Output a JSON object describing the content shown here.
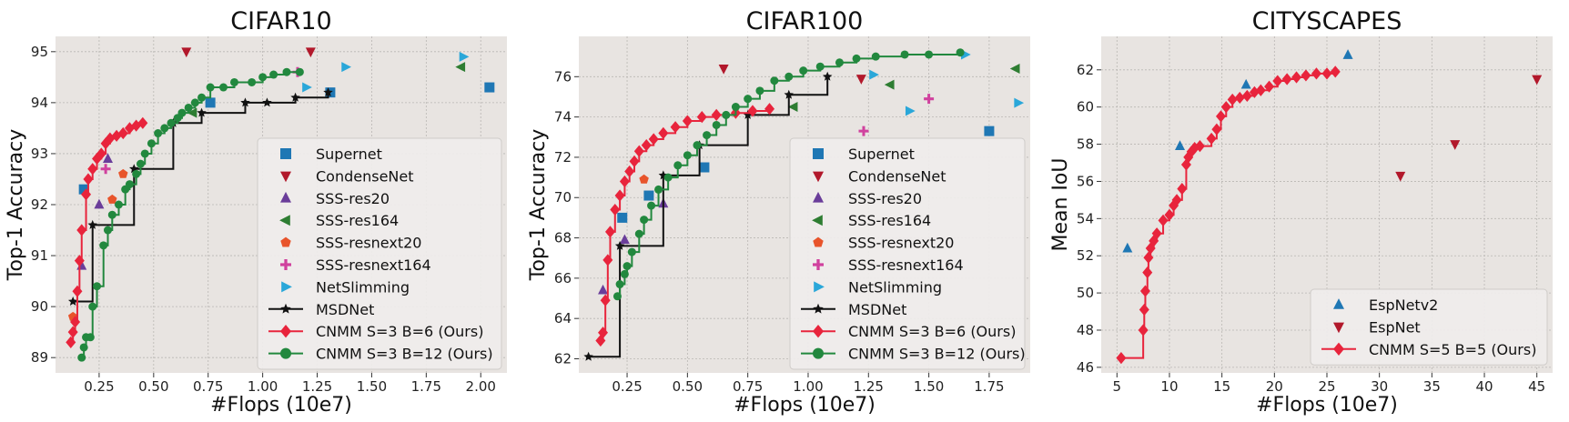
{
  "chart_data": [
    {
      "type": "scatter",
      "title": "CIFAR10",
      "xlabel": "#Flops (10e7)",
      "ylabel": "Top-1 Accuracy",
      "xlim": [
        0.05,
        2.12
      ],
      "ylim": [
        88.7,
        95.3
      ],
      "xticks": [
        0.25,
        0.5,
        0.75,
        1.0,
        1.25,
        1.5,
        1.75,
        2.0
      ],
      "xtick_labels": [
        "0.25",
        "0.50",
        "0.75",
        "1.00",
        "1.25",
        "1.50",
        "1.75",
        "2.00"
      ],
      "yticks": [
        89,
        90,
        91,
        92,
        93,
        94,
        95
      ],
      "legend_position": "lower-right",
      "series": [
        {
          "name": "Supernet",
          "marker": "square",
          "color": "#1f77b4",
          "kind": "scatter",
          "points": [
            [
              0.18,
              92.3
            ],
            [
              0.76,
              94.0
            ],
            [
              1.31,
              94.2
            ],
            [
              2.04,
              94.3
            ]
          ]
        },
        {
          "name": "CondenseNet",
          "marker": "tri-down",
          "color": "#b2182b",
          "kind": "scatter",
          "points": [
            [
              0.65,
              95.0
            ],
            [
              1.22,
              95.0
            ]
          ]
        },
        {
          "name": "SSS-res20",
          "marker": "tri-up",
          "color": "#6a3d9a",
          "kind": "scatter",
          "points": [
            [
              0.17,
              90.8
            ],
            [
              0.25,
              92.0
            ],
            [
              0.29,
              92.9
            ]
          ]
        },
        {
          "name": "SSS-res164",
          "marker": "tri-left",
          "color": "#2e7d32",
          "kind": "scatter",
          "points": [
            [
              0.68,
              93.8
            ],
            [
              1.91,
              94.7
            ]
          ]
        },
        {
          "name": "SSS-resnext20",
          "marker": "pentagon",
          "color": "#e8542b",
          "kind": "scatter",
          "points": [
            [
              0.13,
              89.8
            ],
            [
              0.31,
              92.1
            ],
            [
              0.36,
              92.6
            ]
          ]
        },
        {
          "name": "SSS-resnext164",
          "marker": "plus",
          "color": "#d0419e",
          "kind": "scatter",
          "points": [
            [
              0.28,
              92.7
            ],
            [
              1.16,
              94.6
            ]
          ]
        },
        {
          "name": "NetSlimming",
          "marker": "tri-right",
          "color": "#2aa7d9",
          "kind": "scatter",
          "points": [
            [
              1.38,
              94.7
            ],
            [
              1.92,
              94.9
            ],
            [
              1.2,
              94.3
            ]
          ]
        },
        {
          "name": "MSDNet",
          "marker": "star",
          "color": "#111111",
          "kind": "step",
          "points": [
            [
              0.13,
              90.1
            ],
            [
              0.22,
              91.6
            ],
            [
              0.41,
              92.7
            ],
            [
              0.59,
              93.6
            ],
            [
              0.72,
              93.8
            ],
            [
              0.92,
              94.0
            ],
            [
              1.02,
              94.0
            ],
            [
              1.15,
              94.1
            ],
            [
              1.3,
              94.2
            ]
          ]
        },
        {
          "name": "CNMM S=3 B=6 (Ours)",
          "marker": "diamond",
          "color": "#e8243c",
          "kind": "step",
          "points": [
            [
              0.12,
              89.3
            ],
            [
              0.13,
              89.5
            ],
            [
              0.14,
              89.7
            ],
            [
              0.15,
              90.3
            ],
            [
              0.16,
              90.9
            ],
            [
              0.17,
              91.5
            ],
            [
              0.19,
              92.2
            ],
            [
              0.2,
              92.5
            ],
            [
              0.22,
              92.7
            ],
            [
              0.24,
              92.9
            ],
            [
              0.26,
              93.0
            ],
            [
              0.28,
              93.2
            ],
            [
              0.3,
              93.3
            ],
            [
              0.33,
              93.35
            ],
            [
              0.36,
              93.4
            ],
            [
              0.39,
              93.5
            ],
            [
              0.42,
              93.55
            ],
            [
              0.45,
              93.6
            ]
          ]
        },
        {
          "name": "CNMM S=3 B=12 (Ours)",
          "marker": "circle",
          "color": "#22883e",
          "kind": "step",
          "points": [
            [
              0.17,
              89.0
            ],
            [
              0.18,
              89.2
            ],
            [
              0.19,
              89.4
            ],
            [
              0.21,
              89.4
            ],
            [
              0.22,
              90.0
            ],
            [
              0.24,
              90.4
            ],
            [
              0.27,
              91.2
            ],
            [
              0.29,
              91.5
            ],
            [
              0.31,
              91.8
            ],
            [
              0.34,
              92.0
            ],
            [
              0.37,
              92.3
            ],
            [
              0.39,
              92.4
            ],
            [
              0.42,
              92.6
            ],
            [
              0.44,
              92.8
            ],
            [
              0.46,
              93.0
            ],
            [
              0.49,
              93.2
            ],
            [
              0.52,
              93.4
            ],
            [
              0.55,
              93.5
            ],
            [
              0.58,
              93.6
            ],
            [
              0.61,
              93.7
            ],
            [
              0.63,
              93.8
            ],
            [
              0.66,
              93.9
            ],
            [
              0.69,
              94.0
            ],
            [
              0.72,
              94.1
            ],
            [
              0.76,
              94.3
            ],
            [
              0.82,
              94.3
            ],
            [
              0.87,
              94.4
            ],
            [
              0.95,
              94.4
            ],
            [
              1.0,
              94.5
            ],
            [
              1.05,
              94.55
            ],
            [
              1.11,
              94.6
            ],
            [
              1.17,
              94.6
            ]
          ]
        }
      ]
    },
    {
      "type": "scatter",
      "title": "CIFAR100",
      "xlabel": "#Flops (10e7)",
      "ylabel": "Top-1 Accuracy",
      "xlim": [
        0.05,
        1.92
      ],
      "ylim": [
        61.3,
        78.0
      ],
      "xticks": [
        0.25,
        0.5,
        0.75,
        1.0,
        1.25,
        1.5,
        1.75
      ],
      "xtick_labels": [
        "0.25",
        "0.50",
        "0.75",
        "1.00",
        "1.25",
        "1.50",
        "1.75"
      ],
      "yticks": [
        62,
        64,
        66,
        68,
        70,
        72,
        74,
        76
      ],
      "legend_position": "lower-right",
      "series": [
        {
          "name": "Supernet",
          "marker": "square",
          "color": "#1f77b4",
          "kind": "scatter",
          "points": [
            [
              0.23,
              69.0
            ],
            [
              0.34,
              70.1
            ],
            [
              0.57,
              71.5
            ],
            [
              1.75,
              73.3
            ]
          ]
        },
        {
          "name": "CondenseNet",
          "marker": "tri-down",
          "color": "#b2182b",
          "kind": "scatter",
          "points": [
            [
              0.65,
              76.4
            ],
            [
              1.22,
              75.9
            ]
          ]
        },
        {
          "name": "SSS-res20",
          "marker": "tri-up",
          "color": "#6a3d9a",
          "kind": "scatter",
          "points": [
            [
              0.15,
              65.4
            ],
            [
              0.24,
              67.9
            ],
            [
              0.4,
              69.7
            ]
          ]
        },
        {
          "name": "SSS-res164",
          "marker": "tri-left",
          "color": "#2e7d32",
          "kind": "scatter",
          "points": [
            [
              0.94,
              74.5
            ],
            [
              1.34,
              75.6
            ],
            [
              1.86,
              76.4
            ]
          ]
        },
        {
          "name": "SSS-resnext20",
          "marker": "pentagon",
          "color": "#e8542b",
          "kind": "scatter",
          "points": [
            [
              0.32,
              70.9
            ]
          ]
        },
        {
          "name": "SSS-resnext164",
          "marker": "plus",
          "color": "#d0419e",
          "kind": "scatter",
          "points": [
            [
              1.23,
              73.3
            ],
            [
              1.5,
              74.9
            ]
          ]
        },
        {
          "name": "NetSlimming",
          "marker": "tri-right",
          "color": "#2aa7d9",
          "kind": "scatter",
          "points": [
            [
              1.27,
              76.1
            ],
            [
              1.42,
              74.3
            ],
            [
              1.65,
              77.1
            ],
            [
              1.87,
              74.7
            ]
          ]
        },
        {
          "name": "MSDNet",
          "marker": "star",
          "color": "#111111",
          "kind": "step",
          "points": [
            [
              0.09,
              62.1
            ],
            [
              0.22,
              67.6
            ],
            [
              0.4,
              71.1
            ],
            [
              0.55,
              72.6
            ],
            [
              0.75,
              74.1
            ],
            [
              0.92,
              75.1
            ],
            [
              1.08,
              76.0
            ]
          ]
        },
        {
          "name": "CNMM S=3 B=6 (Ours)",
          "marker": "diamond",
          "color": "#e8243c",
          "kind": "step",
          "points": [
            [
              0.14,
              62.9
            ],
            [
              0.15,
              63.3
            ],
            [
              0.16,
              64.9
            ],
            [
              0.17,
              66.9
            ],
            [
              0.18,
              68.3
            ],
            [
              0.2,
              69.4
            ],
            [
              0.22,
              70.1
            ],
            [
              0.24,
              70.8
            ],
            [
              0.26,
              71.3
            ],
            [
              0.28,
              71.8
            ],
            [
              0.3,
              72.3
            ],
            [
              0.33,
              72.6
            ],
            [
              0.36,
              72.9
            ],
            [
              0.4,
              73.2
            ],
            [
              0.45,
              73.5
            ],
            [
              0.5,
              73.8
            ],
            [
              0.56,
              74.0
            ],
            [
              0.62,
              74.1
            ],
            [
              0.7,
              74.2
            ],
            [
              0.77,
              74.3
            ],
            [
              0.84,
              74.4
            ]
          ]
        },
        {
          "name": "CNMM S=3 B=12 (Ours)",
          "marker": "circle",
          "color": "#22883e",
          "kind": "step",
          "points": [
            [
              0.21,
              65.1
            ],
            [
              0.22,
              65.7
            ],
            [
              0.24,
              66.2
            ],
            [
              0.25,
              66.6
            ],
            [
              0.27,
              67.3
            ],
            [
              0.3,
              68.2
            ],
            [
              0.32,
              68.9
            ],
            [
              0.35,
              69.6
            ],
            [
              0.38,
              70.4
            ],
            [
              0.42,
              71.0
            ],
            [
              0.46,
              71.6
            ],
            [
              0.5,
              72.1
            ],
            [
              0.54,
              72.6
            ],
            [
              0.58,
              73.1
            ],
            [
              0.62,
              73.6
            ],
            [
              0.66,
              74.1
            ],
            [
              0.7,
              74.5
            ],
            [
              0.75,
              74.9
            ],
            [
              0.8,
              75.3
            ],
            [
              0.86,
              75.8
            ],
            [
              0.92,
              76.0
            ],
            [
              0.98,
              76.3
            ],
            [
              1.05,
              76.5
            ],
            [
              1.13,
              76.7
            ],
            [
              1.2,
              76.9
            ],
            [
              1.28,
              77.0
            ],
            [
              1.4,
              77.1
            ],
            [
              1.5,
              77.1
            ],
            [
              1.63,
              77.2
            ]
          ]
        }
      ]
    },
    {
      "type": "scatter",
      "title": "CITYSCAPES",
      "xlabel": "#Flops (10e7)",
      "ylabel": "Mean IoU",
      "xlim": [
        3.5,
        46.5
      ],
      "ylim": [
        45.7,
        63.8
      ],
      "xticks": [
        5,
        10,
        15,
        20,
        25,
        30,
        35,
        40,
        45
      ],
      "xtick_labels": [
        "5",
        "10",
        "15",
        "20",
        "25",
        "30",
        "35",
        "40",
        "45"
      ],
      "yticks": [
        46,
        48,
        50,
        52,
        54,
        56,
        58,
        60,
        62
      ],
      "legend_position": "lower-right",
      "series": [
        {
          "name": "EspNetv2",
          "marker": "tri-up",
          "color": "#1f77b4",
          "kind": "scatter",
          "points": [
            [
              6.0,
              52.4
            ],
            [
              11.0,
              57.9
            ],
            [
              17.3,
              61.2
            ],
            [
              27.0,
              62.8
            ]
          ]
        },
        {
          "name": "EspNet",
          "marker": "tri-down",
          "color": "#b2182b",
          "kind": "scatter",
          "points": [
            [
              32.0,
              56.3
            ],
            [
              37.2,
              58.0
            ],
            [
              45.0,
              61.5
            ]
          ]
        },
        {
          "name": "CNMM S=5 B=5 (Ours)",
          "marker": "diamond",
          "color": "#e8243c",
          "kind": "step",
          "points": [
            [
              5.4,
              46.5
            ],
            [
              7.5,
              48.0
            ],
            [
              7.6,
              49.1
            ],
            [
              7.7,
              50.1
            ],
            [
              7.9,
              51.1
            ],
            [
              8.0,
              51.9
            ],
            [
              8.2,
              52.4
            ],
            [
              8.5,
              52.8
            ],
            [
              8.8,
              53.2
            ],
            [
              9.4,
              53.9
            ],
            [
              10.0,
              54.2
            ],
            [
              10.4,
              54.7
            ],
            [
              10.7,
              55.0
            ],
            [
              11.2,
              55.6
            ],
            [
              11.6,
              56.9
            ],
            [
              11.8,
              57.3
            ],
            [
              12.1,
              57.6
            ],
            [
              12.4,
              57.8
            ],
            [
              12.9,
              57.9
            ],
            [
              14.0,
              58.3
            ],
            [
              14.5,
              58.8
            ],
            [
              14.9,
              59.5
            ],
            [
              15.4,
              60.0
            ],
            [
              16.0,
              60.4
            ],
            [
              16.7,
              60.5
            ],
            [
              17.4,
              60.6
            ],
            [
              18.1,
              60.8
            ],
            [
              18.7,
              60.9
            ],
            [
              19.5,
              61.1
            ],
            [
              20.3,
              61.4
            ],
            [
              21.2,
              61.5
            ],
            [
              22.1,
              61.6
            ],
            [
              23.0,
              61.7
            ],
            [
              24.0,
              61.8
            ],
            [
              25.0,
              61.8
            ],
            [
              25.8,
              61.9
            ]
          ]
        }
      ]
    }
  ]
}
